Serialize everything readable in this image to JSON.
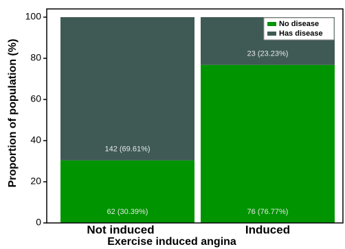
{
  "chart_data": {
    "type": "stacked-bar",
    "xlabel": "Exercise induced angina",
    "ylabel": "Proportion of population (%)",
    "categories": [
      "Not induced",
      "Induced"
    ],
    "series": [
      {
        "name": "No disease",
        "color": "#009400",
        "values": [
          30.39,
          76.77
        ],
        "value_labels": [
          "62 (30.39%)",
          "76 (76.77%)"
        ]
      },
      {
        "name": "Has disease",
        "color": "#3f5a55",
        "values": [
          69.61,
          23.23
        ],
        "value_labels": [
          "142 (69.61%)",
          "23 (23.23%)"
        ]
      }
    ],
    "ylim": [
      0,
      104
    ],
    "yticks": [
      0,
      20,
      40,
      60,
      80,
      100
    ],
    "legend": "upper right"
  }
}
